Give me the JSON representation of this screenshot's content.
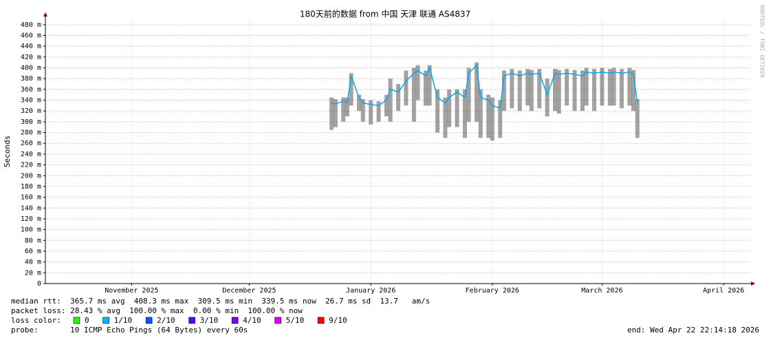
{
  "chart_data": {
    "type": "smoke",
    "title": "180天前的数据 from 中国 天津 联通 AS4837",
    "watermark": "RRDTOOL / TOBI OETIKER",
    "ylabel": "Seconds",
    "ylim": [
      0,
      0.49
    ],
    "yticks": [
      0,
      {
        "value": 0.02,
        "label": "20 m"
      },
      {
        "value": 0.04,
        "label": "40 m"
      },
      {
        "value": 0.06,
        "label": "60 m"
      },
      {
        "value": 0.08,
        "label": "80 m"
      },
      {
        "value": 0.1,
        "label": "100 m"
      },
      {
        "value": 0.12,
        "label": "120 m"
      },
      {
        "value": 0.14,
        "label": "140 m"
      },
      {
        "value": 0.16,
        "label": "160 m"
      },
      {
        "value": 0.18,
        "label": "180 m"
      },
      {
        "value": 0.2,
        "label": "200 m"
      },
      {
        "value": 0.22,
        "label": "220 m"
      },
      {
        "value": 0.24,
        "label": "240 m"
      },
      {
        "value": 0.26,
        "label": "260 m"
      },
      {
        "value": 0.28,
        "label": "280 m"
      },
      {
        "value": 0.3,
        "label": "300 m"
      },
      {
        "value": 0.32,
        "label": "320 m"
      },
      {
        "value": 0.34,
        "label": "340 m"
      },
      {
        "value": 0.36,
        "label": "360 m"
      },
      {
        "value": 0.38,
        "label": "380 m"
      },
      {
        "value": 0.4,
        "label": "400 m"
      },
      {
        "value": 0.42,
        "label": "420 m"
      },
      {
        "value": 0.44,
        "label": "440 m"
      },
      {
        "value": 0.46,
        "label": "460 m"
      },
      {
        "value": 0.48,
        "label": "480 m"
      }
    ],
    "xlim": [
      0,
      180
    ],
    "xticks": [
      {
        "value": 22,
        "label": "November 2025"
      },
      {
        "value": 52,
        "label": "December 2025"
      },
      {
        "value": 83,
        "label": "January 2026"
      },
      {
        "value": 114,
        "label": "February 2026"
      },
      {
        "value": 142,
        "label": "March 2026"
      },
      {
        "value": 173,
        "label": "April 2026"
      }
    ],
    "grid": true,
    "x": [
      73,
      74,
      76,
      77,
      78,
      80,
      81,
      83,
      85,
      87,
      88,
      90,
      92,
      94,
      95,
      97,
      98,
      100,
      102,
      103,
      105,
      107,
      108,
      110,
      111,
      113,
      114,
      116,
      117,
      119,
      121,
      123,
      124,
      126,
      128,
      130,
      131,
      133,
      135,
      137,
      138,
      140,
      142,
      144,
      145,
      147,
      149,
      150,
      151
    ],
    "series": [
      {
        "color": "#00a8f0",
        "values": [
          0.335,
          0.333,
          0.338,
          0.336,
          0.385,
          0.345,
          0.335,
          0.332,
          0.33,
          0.34,
          0.36,
          0.355,
          0.375,
          0.39,
          0.395,
          0.385,
          0.4,
          0.345,
          0.335,
          0.345,
          0.355,
          0.345,
          0.39,
          0.405,
          0.345,
          0.34,
          0.33,
          0.325,
          0.385,
          0.39,
          0.385,
          0.39,
          0.388,
          0.39,
          0.35,
          0.39,
          0.388,
          0.39,
          0.388,
          0.385,
          0.392,
          0.39,
          0.392,
          0.39,
          0.392,
          0.39,
          0.392,
          0.388,
          0.335
        ]
      }
    ],
    "smoke_color": "#555555",
    "low": [
      0.285,
      0.29,
      0.3,
      0.31,
      0.33,
      0.32,
      0.3,
      0.295,
      0.3,
      0.31,
      0.3,
      0.32,
      0.33,
      0.3,
      0.34,
      0.33,
      0.33,
      0.28,
      0.27,
      0.29,
      0.29,
      0.27,
      0.3,
      0.3,
      0.27,
      0.27,
      0.265,
      0.27,
      0.32,
      0.325,
      0.32,
      0.33,
      0.32,
      0.325,
      0.31,
      0.32,
      0.315,
      0.33,
      0.32,
      0.32,
      0.33,
      0.32,
      0.33,
      0.33,
      0.33,
      0.325,
      0.33,
      0.32,
      0.27
    ],
    "high": [
      0.345,
      0.342,
      0.345,
      0.345,
      0.39,
      0.35,
      0.342,
      0.34,
      0.338,
      0.35,
      0.38,
      0.37,
      0.395,
      0.4,
      0.405,
      0.395,
      0.405,
      0.36,
      0.345,
      0.36,
      0.36,
      0.36,
      0.4,
      0.41,
      0.36,
      0.35,
      0.345,
      0.34,
      0.395,
      0.398,
      0.395,
      0.398,
      0.396,
      0.398,
      0.38,
      0.398,
      0.396,
      0.398,
      0.396,
      0.395,
      0.4,
      0.398,
      0.4,
      0.398,
      0.4,
      0.398,
      0.4,
      0.396,
      0.342
    ],
    "median_rtt": "median rtt:  365.7 ms avg  408.3 ms max  309.5 ms min  339.5 ms now  26.7 ms sd  13.7   am/s",
    "packet_loss": "packet loss: 28.43 % avg  100.00 % max  0.00 % min  100.00 % now",
    "loss_color_label": "loss color:",
    "loss_colors": [
      {
        "color": "#26ff00",
        "label": "0"
      },
      {
        "color": "#00b8ff",
        "label": "1/10"
      },
      {
        "color": "#0059ff",
        "label": "2/10"
      },
      {
        "color": "#5e00ff",
        "label": "3/10"
      },
      {
        "color": "#7e00ff",
        "label": "4/10"
      },
      {
        "color": "#dd00ff",
        "label": "5/10"
      },
      {
        "color": "#ff0000",
        "label": "9/10"
      }
    ],
    "probe": "probe:       10 ICMP Echo Pings (64 Bytes) every 60s",
    "end": "end: Wed Apr 22 22:14:18 2026"
  }
}
